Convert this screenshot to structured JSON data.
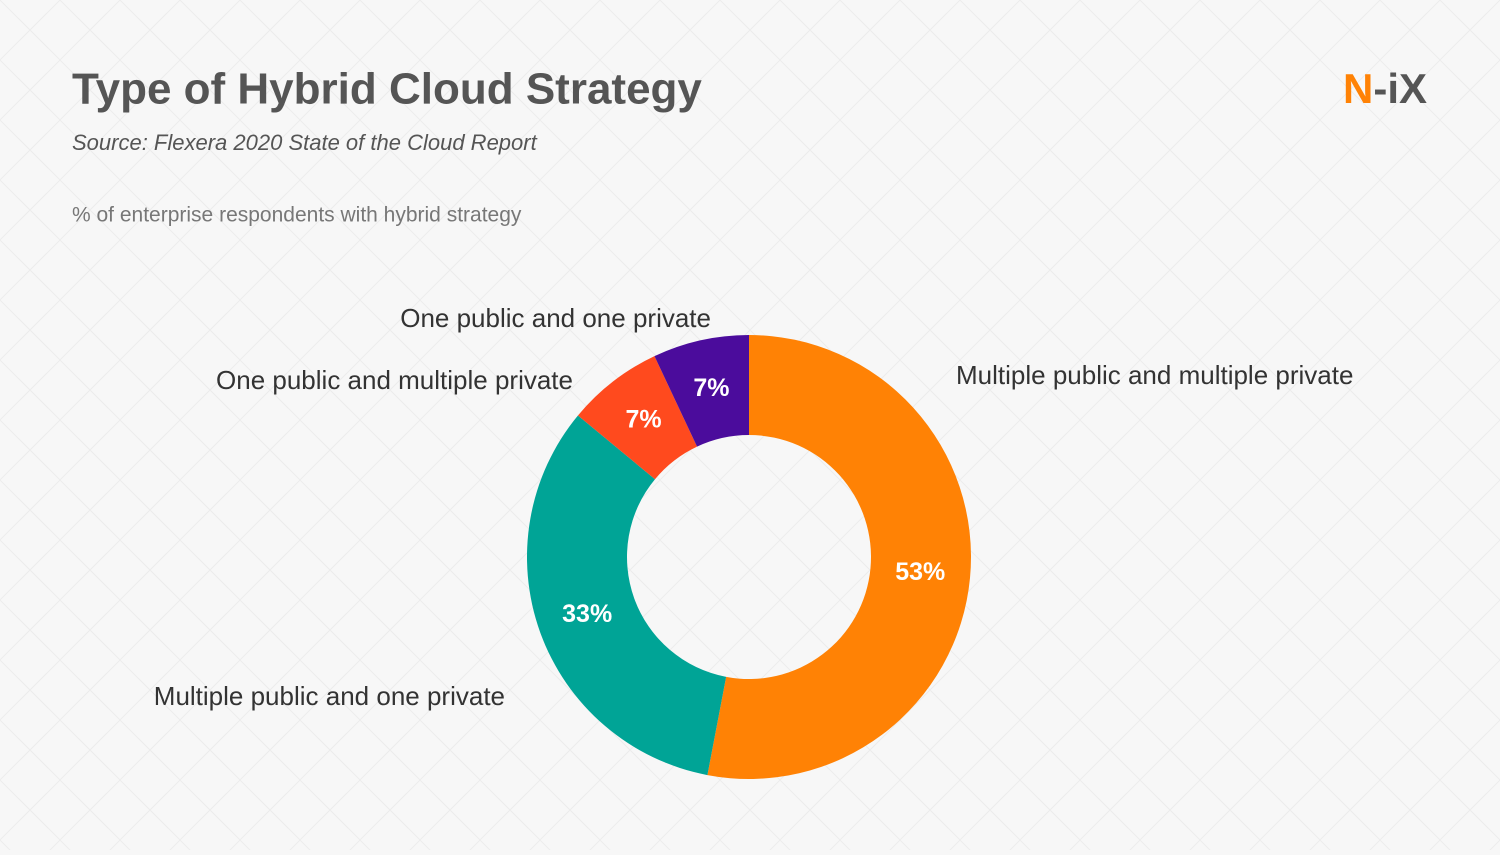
{
  "logo": {
    "accent": "N",
    "rest": "-iX"
  },
  "chart_data": {
    "type": "donut",
    "title": "Type of Hybrid Cloud Strategy",
    "subtitle": "Source: Flexera 2020 State of the Cloud Report",
    "note": "% of enterprise respondents with hybrid strategy",
    "categories": [
      "Multiple public and multiple private",
      "Multiple public and one private",
      "One public and multiple private",
      "One public and one private"
    ],
    "values": [
      53,
      33,
      7,
      7
    ],
    "value_labels": [
      "53%",
      "33%",
      "7%",
      "7%"
    ],
    "colors": [
      "#ff8205",
      "#00a496",
      "#ff4a1e",
      "#4b0c9c"
    ]
  }
}
